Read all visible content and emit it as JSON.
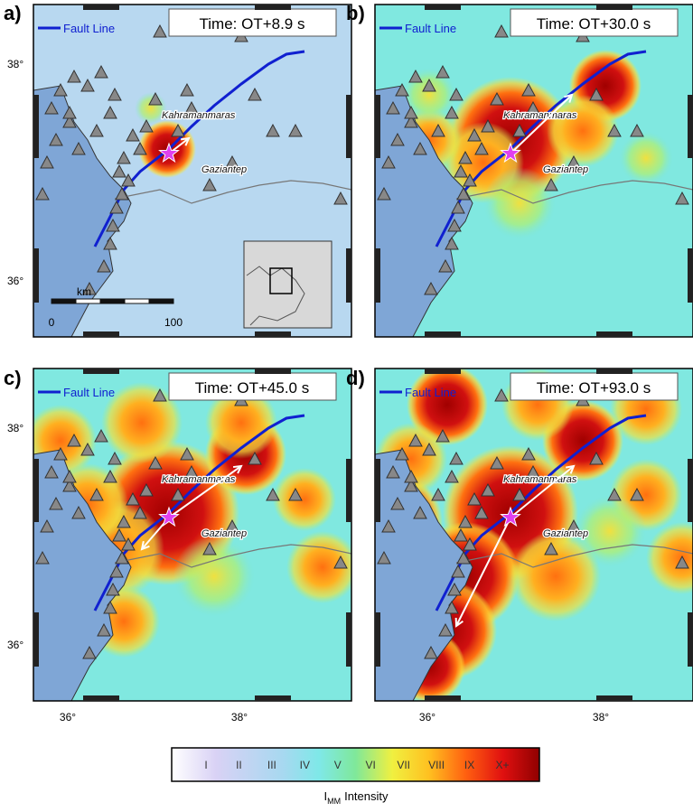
{
  "panels": [
    {
      "label": "a)",
      "legend": "Fault Line",
      "time": "Time: OT+8.9 s",
      "cities": [
        "Kahramanmaras",
        "Gaziantep"
      ],
      "y_labels": [
        "38°",
        "36°"
      ],
      "scale": {
        "unit": "km",
        "ticks": [
          "0",
          "100"
        ]
      }
    },
    {
      "label": "b)",
      "legend": "Fault Line",
      "time": "Time: OT+30.0 s",
      "cities": [
        "Kahramanmaras",
        "Gaziantep"
      ]
    },
    {
      "label": "c)",
      "legend": "Fault Line",
      "time": "Time: OT+45.0 s",
      "cities": [
        "Kahramanmaras",
        "Gaziantep"
      ],
      "y_labels": [
        "38°",
        "36°"
      ],
      "x_labels": [
        "36°",
        "38°"
      ]
    },
    {
      "label": "d)",
      "legend": "Fault Line",
      "time": "Time: OT+93.0 s",
      "cities": [
        "Kahramanmaras",
        "Gaziantep"
      ],
      "x_labels": [
        "36°",
        "38°"
      ]
    }
  ],
  "colorbar": {
    "levels": [
      "I",
      "II",
      "III",
      "IV",
      "V",
      "VI",
      "VII",
      "VIII",
      "IX",
      "X+"
    ],
    "title": {
      "symbol": "I",
      "subscript": "MM",
      "text": "Intensity"
    }
  }
}
